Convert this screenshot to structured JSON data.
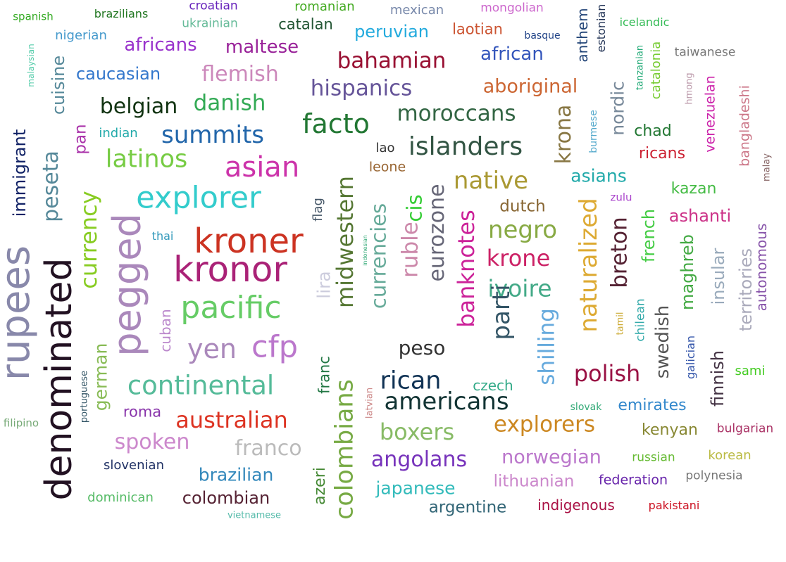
{
  "word_cloud": {
    "words": [
      {
        "text": "spanish",
        "color": "#33aa22",
        "vertical": false
      },
      {
        "text": "brazilians",
        "color": "#227722",
        "vertical": false
      },
      {
        "text": "croatian",
        "color": "#6622bb",
        "vertical": false
      },
      {
        "text": "romanian",
        "color": "#44aa22",
        "vertical": false
      },
      {
        "text": "mexican",
        "color": "#7788aa",
        "vertical": false
      },
      {
        "text": "mongolian",
        "color": "#cc66cc",
        "vertical": false
      },
      {
        "text": "anthem",
        "color": "#224477",
        "vertical": true
      },
      {
        "text": "estonian",
        "color": "#223355",
        "vertical": true
      },
      {
        "text": "icelandic",
        "color": "#33bb55",
        "vertical": false
      },
      {
        "text": "ukrainian",
        "color": "#66bb99",
        "vertical": false
      },
      {
        "text": "catalan",
        "color": "#225533",
        "vertical": false
      },
      {
        "text": "peruvian",
        "color": "#22aadd",
        "vertical": false
      },
      {
        "text": "laotian",
        "color": "#cc5533",
        "vertical": false
      },
      {
        "text": "basque",
        "color": "#224488",
        "vertical": false
      },
      {
        "text": "nigerian",
        "color": "#4499cc",
        "vertical": false
      },
      {
        "text": "malaysian",
        "color": "#55ccaa",
        "vertical": true
      },
      {
        "text": "africans",
        "color": "#9933cc",
        "vertical": false
      },
      {
        "text": "maltese",
        "color": "#992299",
        "vertical": false
      },
      {
        "text": "tanzanian",
        "color": "#22aa77",
        "vertical": true
      },
      {
        "text": "catalonia",
        "color": "#77cc33",
        "vertical": true
      },
      {
        "text": "taiwanese",
        "color": "#777777",
        "vertical": false
      },
      {
        "text": "cuisine",
        "color": "#558899",
        "vertical": true
      },
      {
        "text": "bahamian",
        "color": "#991133",
        "vertical": false
      },
      {
        "text": "african",
        "color": "#3355bb",
        "vertical": false
      },
      {
        "text": "caucasian",
        "color": "#3377cc",
        "vertical": false
      },
      {
        "text": "flemish",
        "color": "#cc88bb",
        "vertical": false
      },
      {
        "text": "hispanics",
        "color": "#665599",
        "vertical": false
      },
      {
        "text": "aboriginal",
        "color": "#cc6633",
        "vertical": false
      },
      {
        "text": "nordic",
        "color": "#778899",
        "vertical": true
      },
      {
        "text": "hmong",
        "color": "#bb99aa",
        "vertical": true
      },
      {
        "text": "venezuelan",
        "color": "#cc22aa",
        "vertical": true
      },
      {
        "text": "bangladeshi",
        "color": "#cc7788",
        "vertical": true
      },
      {
        "text": "belgian",
        "color": "#113311",
        "vertical": false
      },
      {
        "text": "danish",
        "color": "#33aa55",
        "vertical": false
      },
      {
        "text": "moroccans",
        "color": "#336644",
        "vertical": false
      },
      {
        "text": "burmese",
        "color": "#55aacc",
        "vertical": true
      },
      {
        "text": "malay",
        "color": "#886666",
        "vertical": true
      },
      {
        "text": "immigrant",
        "color": "#112266",
        "vertical": true
      },
      {
        "text": "pan",
        "color": "#aa33aa",
        "vertical": true
      },
      {
        "text": "indian",
        "color": "#22aaaa",
        "vertical": false
      },
      {
        "text": "summits",
        "color": "#2266aa",
        "vertical": false
      },
      {
        "text": "facto",
        "color": "#227733",
        "vertical": false
      },
      {
        "text": "krona",
        "color": "#887744",
        "vertical": true
      },
      {
        "text": "chad",
        "color": "#227733",
        "vertical": false
      },
      {
        "text": "ricans",
        "color": "#cc2233",
        "vertical": false
      },
      {
        "text": "peseta",
        "color": "#558899",
        "vertical": true
      },
      {
        "text": "latinos",
        "color": "#77cc44",
        "vertical": false
      },
      {
        "text": "lao",
        "color": "#333333",
        "vertical": false
      },
      {
        "text": "islanders",
        "color": "#335544",
        "vertical": false
      },
      {
        "text": "leone",
        "color": "#996633",
        "vertical": false
      },
      {
        "text": "asian",
        "color": "#cc33aa",
        "vertical": false
      },
      {
        "text": "native",
        "color": "#aa9933",
        "vertical": false
      },
      {
        "text": "asians",
        "color": "#22aaaa",
        "vertical": false
      },
      {
        "text": "kazan",
        "color": "#44bb44",
        "vertical": false
      },
      {
        "text": "zulu",
        "color": "#aa44cc",
        "vertical": false
      },
      {
        "text": "currency",
        "color": "#88cc22",
        "vertical": true
      },
      {
        "text": "explorer",
        "color": "#33cccc",
        "vertical": false
      },
      {
        "text": "flag",
        "color": "#445566",
        "vertical": true
      },
      {
        "text": "midwestern",
        "color": "#557733",
        "vertical": true
      },
      {
        "text": "currencies",
        "color": "#66aa99",
        "vertical": true
      },
      {
        "text": "ruble",
        "color": "#cc88aa",
        "vertical": true
      },
      {
        "text": "cis",
        "color": "#33cc33",
        "vertical": true
      },
      {
        "text": "eurozone",
        "color": "#666677",
        "vertical": true
      },
      {
        "text": "banknotes",
        "color": "#cc2299",
        "vertical": true
      },
      {
        "text": "dutch",
        "color": "#886633",
        "vertical": false
      },
      {
        "text": "naturalized",
        "color": "#ddaa33",
        "vertical": true
      },
      {
        "text": "ashanti",
        "color": "#cc3388",
        "vertical": false
      },
      {
        "text": "autonomous",
        "color": "#8855aa",
        "vertical": true
      },
      {
        "text": "rupees",
        "color": "#8888aa",
        "vertical": true
      },
      {
        "text": "pegged",
        "color": "#aa88bb",
        "vertical": true
      },
      {
        "text": "thai",
        "color": "#3399bb",
        "vertical": false
      },
      {
        "text": "kroner",
        "color": "#cc3322",
        "vertical": false
      },
      {
        "text": "negro",
        "color": "#88aa44",
        "vertical": false
      },
      {
        "text": "breton",
        "color": "#552233",
        "vertical": true
      },
      {
        "text": "french",
        "color": "#44cc44",
        "vertical": true
      },
      {
        "text": "maghreb",
        "color": "#44aa44",
        "vertical": true
      },
      {
        "text": "insular",
        "color": "#99aabb",
        "vertical": true
      },
      {
        "text": "territories",
        "color": "#aaaabb",
        "vertical": true
      },
      {
        "text": "denominated",
        "color": "#221122",
        "vertical": true
      },
      {
        "text": "kronor",
        "color": "#aa2277",
        "vertical": false
      },
      {
        "text": "indonesian",
        "color": "#33aa77",
        "vertical": true
      },
      {
        "text": "krone",
        "color": "#cc2266",
        "vertical": false
      },
      {
        "text": "lira",
        "color": "#ccccdd",
        "vertical": true
      },
      {
        "text": "ivoire",
        "color": "#44aa88",
        "vertical": false
      },
      {
        "text": "pacific",
        "color": "#66cc66",
        "vertical": false
      },
      {
        "text": "cuban",
        "color": "#bb88cc",
        "vertical": true
      },
      {
        "text": "parti",
        "color": "#335566",
        "vertical": true
      },
      {
        "text": "shilling",
        "color": "#66aadd",
        "vertical": true
      },
      {
        "text": "tamil",
        "color": "#ccaa33",
        "vertical": true
      },
      {
        "text": "chilean",
        "color": "#33aaaa",
        "vertical": true
      },
      {
        "text": "swedish",
        "color": "#555555",
        "vertical": true
      },
      {
        "text": "galician",
        "color": "#3355aa",
        "vertical": true
      },
      {
        "text": "finnish",
        "color": "#443344",
        "vertical": true
      },
      {
        "text": "yen",
        "color": "#aa88bb",
        "vertical": false
      },
      {
        "text": "cfp",
        "color": "#bb77cc",
        "vertical": false
      },
      {
        "text": "peso",
        "color": "#333333",
        "vertical": false
      },
      {
        "text": "polish",
        "color": "#991144",
        "vertical": false
      },
      {
        "text": "sami",
        "color": "#44cc22",
        "vertical": false
      },
      {
        "text": "franc",
        "color": "#227744",
        "vertical": true
      },
      {
        "text": "portuguese",
        "color": "#335566",
        "vertical": true
      },
      {
        "text": "german",
        "color": "#88bb55",
        "vertical": true
      },
      {
        "text": "continental",
        "color": "#55bb99",
        "vertical": false
      },
      {
        "text": "rican",
        "color": "#113355",
        "vertical": false
      },
      {
        "text": "czech",
        "color": "#33aa88",
        "vertical": false
      },
      {
        "text": "colombians",
        "color": "#77aa44",
        "vertical": true
      },
      {
        "text": "americans",
        "color": "#113333",
        "vertical": false
      },
      {
        "text": "latvian",
        "color": "#cc8888",
        "vertical": true
      },
      {
        "text": "slovak",
        "color": "#33aa77",
        "vertical": false
      },
      {
        "text": "emirates",
        "color": "#3388cc",
        "vertical": false
      },
      {
        "text": "roma",
        "color": "#8833aa",
        "vertical": false
      },
      {
        "text": "australian",
        "color": "#dd3322",
        "vertical": false
      },
      {
        "text": "filipino",
        "color": "#77aa77",
        "vertical": false
      },
      {
        "text": "explorers",
        "color": "#cc8822",
        "vertical": false
      },
      {
        "text": "kenyan",
        "color": "#888833",
        "vertical": false
      },
      {
        "text": "bulgarian",
        "color": "#aa3366",
        "vertical": false
      },
      {
        "text": "boxers",
        "color": "#88bb66",
        "vertical": false
      },
      {
        "text": "spoken",
        "color": "#cc88cc",
        "vertical": false
      },
      {
        "text": "franco",
        "color": "#bbbbbb",
        "vertical": false
      },
      {
        "text": "norwegian",
        "color": "#bb77cc",
        "vertical": false
      },
      {
        "text": "angolans",
        "color": "#7733bb",
        "vertical": false
      },
      {
        "text": "russian",
        "color": "#66bb33",
        "vertical": false
      },
      {
        "text": "korean",
        "color": "#bbbb44",
        "vertical": false
      },
      {
        "text": "slovenian",
        "color": "#223366",
        "vertical": false
      },
      {
        "text": "brazilian",
        "color": "#3388bb",
        "vertical": false
      },
      {
        "text": "azeri",
        "color": "#448833",
        "vertical": true
      },
      {
        "text": "lithuanian",
        "color": "#cc88cc",
        "vertical": false
      },
      {
        "text": "federation",
        "color": "#6622aa",
        "vertical": false
      },
      {
        "text": "polynesia",
        "color": "#777777",
        "vertical": false
      },
      {
        "text": "japanese",
        "color": "#33bbbb",
        "vertical": false
      },
      {
        "text": "colombian",
        "color": "#552233",
        "vertical": false
      },
      {
        "text": "dominican",
        "color": "#55bb66",
        "vertical": false
      },
      {
        "text": "argentine",
        "color": "#336677",
        "vertical": false
      },
      {
        "text": "indigenous",
        "color": "#aa1144",
        "vertical": false
      },
      {
        "text": "pakistani",
        "color": "#cc1122",
        "vertical": false
      },
      {
        "text": "vietnamese",
        "color": "#55bbaa",
        "vertical": false
      }
    ]
  }
}
